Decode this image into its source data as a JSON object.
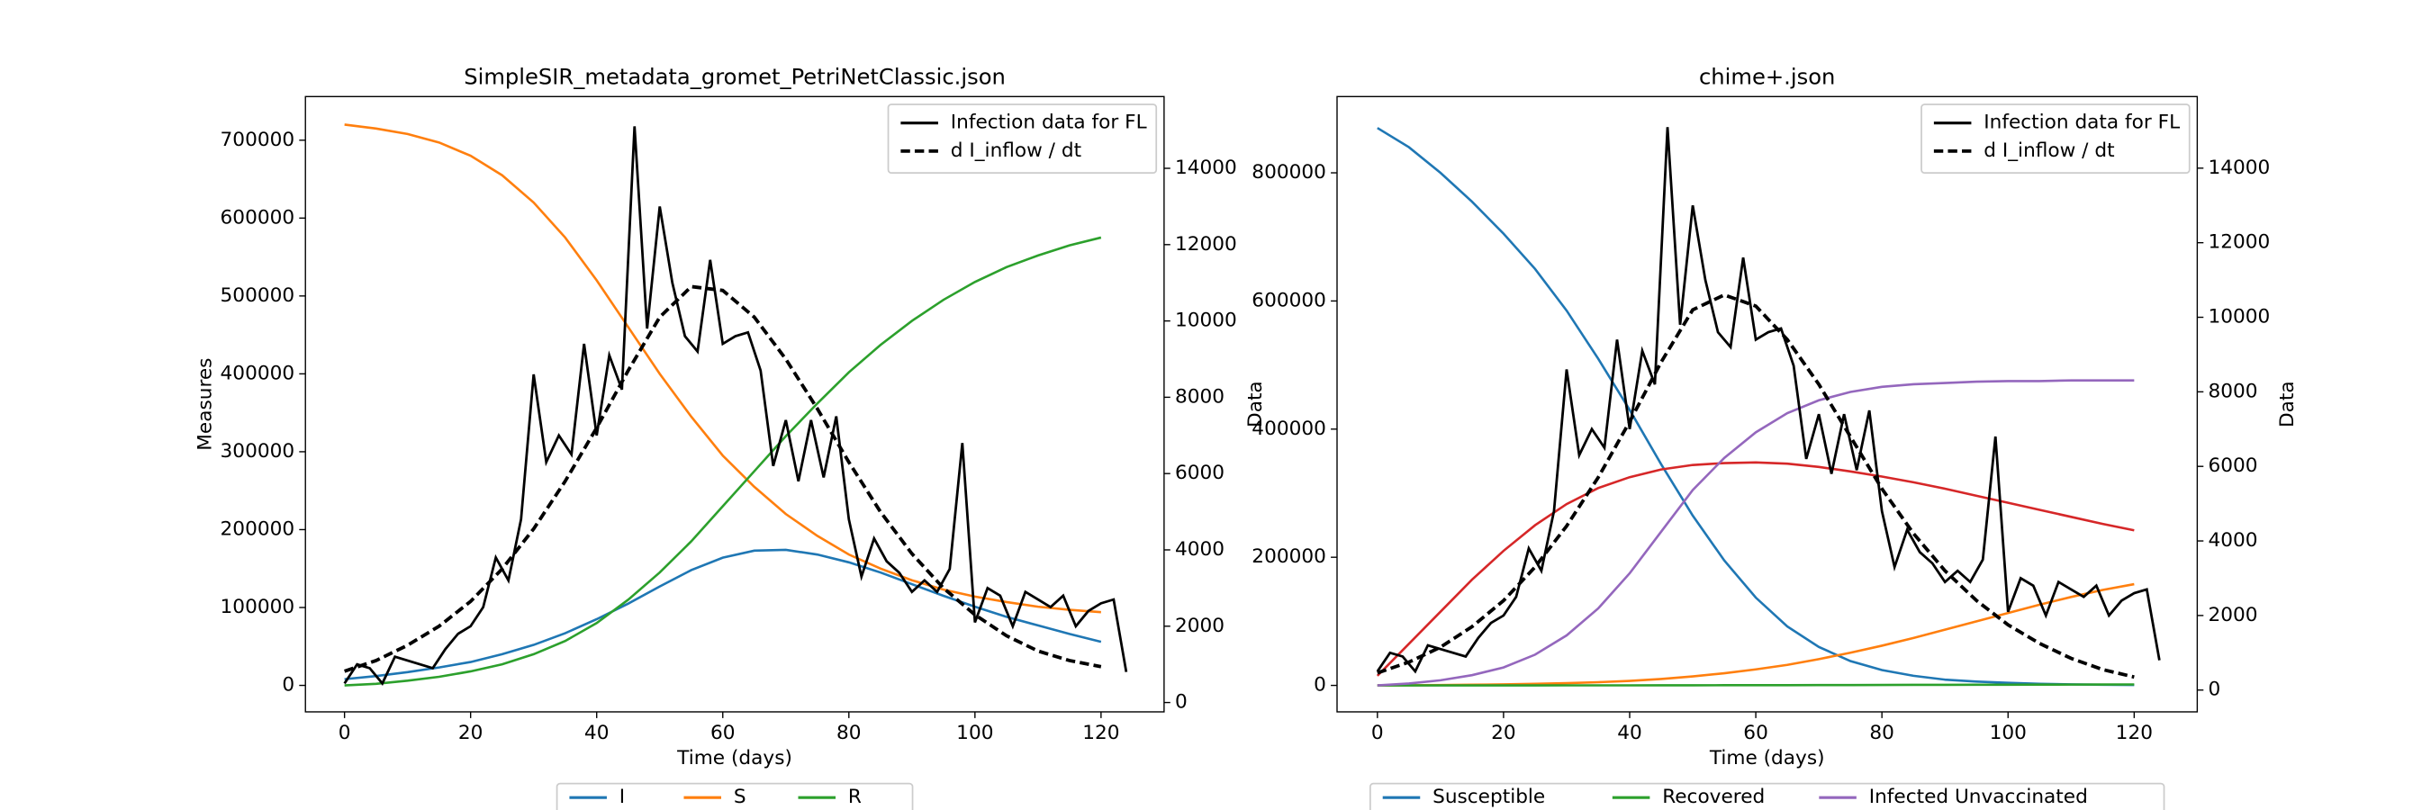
{
  "chart_data": [
    {
      "type": "line",
      "title": "SimpleSIR_metadata_gromet_PetriNetClassic.json",
      "xlabel": "Time (days)",
      "ylabel": "Measures",
      "xlim": [
        -6.2,
        130
      ],
      "ylim": [
        -34000,
        756000
      ],
      "y2lim": [
        -245,
        15880
      ],
      "xticks": [
        0,
        20,
        40,
        60,
        80,
        100,
        120
      ],
      "yticks": [
        0,
        100000,
        200000,
        300000,
        400000,
        500000,
        600000,
        700000
      ],
      "y2ticks": [
        0,
        2000,
        4000,
        6000,
        8000,
        10000,
        12000,
        14000
      ],
      "series": [
        {
          "name": "I",
          "color": "#1f77b4",
          "legend": "below",
          "x": [
            0,
            5,
            10,
            15,
            20,
            25,
            30,
            35,
            40,
            45,
            50,
            55,
            60,
            65,
            70,
            75,
            80,
            85,
            90,
            95,
            100,
            105,
            110,
            115,
            120
          ],
          "values": [
            8000,
            12000,
            17000,
            23000,
            30000,
            40000,
            52000,
            67000,
            85000,
            105000,
            127000,
            148000,
            164000,
            173000,
            174000,
            168000,
            158000,
            145000,
            130000,
            115000,
            101000,
            88000,
            77000,
            66000,
            56000
          ]
        },
        {
          "name": "S",
          "color": "#ff7f0e",
          "legend": "below",
          "x": [
            0,
            5,
            10,
            15,
            20,
            25,
            30,
            35,
            40,
            45,
            50,
            55,
            60,
            65,
            70,
            75,
            80,
            85,
            90,
            95,
            100,
            105,
            110,
            115,
            120
          ],
          "values": [
            720000,
            715000,
            708000,
            697000,
            680000,
            655000,
            620000,
            575000,
            520000,
            460000,
            400000,
            345000,
            295000,
            255000,
            220000,
            192000,
            168000,
            150000,
            135000,
            123000,
            114000,
            107000,
            101000,
            97000,
            94000
          ]
        },
        {
          "name": "R",
          "color": "#2ca02c",
          "legend": "below",
          "x": [
            0,
            5,
            10,
            15,
            20,
            25,
            30,
            35,
            40,
            45,
            50,
            55,
            60,
            65,
            70,
            75,
            80,
            85,
            90,
            95,
            100,
            105,
            110,
            115,
            120
          ],
          "values": [
            0,
            2000,
            6000,
            11000,
            18000,
            27000,
            40000,
            57000,
            80000,
            110000,
            145000,
            185000,
            230000,
            275000,
            320000,
            362000,
            402000,
            437000,
            468000,
            495000,
            518000,
            537000,
            552000,
            565000,
            575000
          ]
        },
        {
          "name": "Infection data for FL",
          "color": "#000000",
          "axis": "y2",
          "legend": "upper right",
          "x": [
            0,
            2,
            4,
            6,
            8,
            10,
            12,
            14,
            16,
            18,
            20,
            22,
            24,
            26,
            28,
            30,
            32,
            34,
            36,
            38,
            40,
            42,
            44,
            46,
            48,
            50,
            52,
            54,
            56,
            58,
            60,
            62,
            64,
            66,
            68,
            70,
            72,
            74,
            76,
            78,
            80,
            82,
            84,
            86,
            88,
            90,
            92,
            94,
            96,
            98,
            100,
            102,
            104,
            106,
            108,
            110,
            112,
            114,
            116,
            118,
            120,
            122,
            124
          ],
          "values": [
            500,
            1000,
            900,
            500,
            1200,
            1100,
            1000,
            900,
            1400,
            1800,
            2000,
            2500,
            3800,
            3200,
            4800,
            8600,
            6300,
            7000,
            6500,
            9400,
            7000,
            9100,
            8200,
            15100,
            9800,
            13000,
            11000,
            9600,
            9200,
            11600,
            9400,
            9600,
            9700,
            8700,
            6200,
            7400,
            5800,
            7400,
            5900,
            7500,
            4800,
            3300,
            4300,
            3700,
            3400,
            2900,
            3200,
            2900,
            3500,
            6800,
            2100,
            3000,
            2800,
            2000,
            2900,
            2700,
            2500,
            2800,
            2000,
            2400,
            2600,
            2700,
            800
          ]
        },
        {
          "name": "d I_inflow / dt",
          "color": "#000000",
          "axis": "y2",
          "linestyle": "dashed",
          "legend": "upper right",
          "x": [
            0,
            5,
            10,
            15,
            20,
            25,
            30,
            35,
            40,
            45,
            50,
            55,
            60,
            65,
            70,
            75,
            80,
            85,
            90,
            95,
            100,
            105,
            110,
            115,
            120
          ],
          "values": [
            820,
            1100,
            1500,
            2000,
            2650,
            3500,
            4550,
            5800,
            7200,
            8700,
            10100,
            10900,
            10800,
            10100,
            9000,
            7700,
            6300,
            5000,
            3900,
            3000,
            2300,
            1750,
            1350,
            1100,
            940
          ]
        }
      ]
    },
    {
      "type": "line",
      "title": "chime+.json",
      "xlabel": "Time (days)",
      "ylabel": "Data",
      "y2label": "Data",
      "xlim": [
        -6.4,
        130
      ],
      "ylim": [
        -41300,
        919000
      ],
      "y2lim": [
        -585,
        15920
      ],
      "xticks": [
        0,
        20,
        40,
        60,
        80,
        100,
        120
      ],
      "yticks": [
        0,
        200000,
        400000,
        600000,
        800000
      ],
      "y2ticks": [
        0,
        2000,
        4000,
        6000,
        8000,
        10000,
        12000,
        14000
      ],
      "series": [
        {
          "name": "Susceptible",
          "color": "#1f77b4",
          "legend": "below",
          "x": [
            0,
            5,
            10,
            15,
            20,
            25,
            30,
            35,
            40,
            45,
            50,
            55,
            60,
            65,
            70,
            75,
            80,
            85,
            90,
            95,
            100,
            105,
            110,
            115,
            120
          ],
          "values": [
            870000,
            840000,
            800000,
            755000,
            705000,
            650000,
            585000,
            510000,
            430000,
            345000,
            265000,
            195000,
            137000,
            92000,
            60000,
            38000,
            24000,
            15000,
            9000,
            6000,
            4000,
            2500,
            1600,
            1000,
            700
          ]
        },
        {
          "color": "#ff7f0e",
          "x": [
            0,
            5,
            10,
            15,
            20,
            25,
            30,
            35,
            40,
            45,
            50,
            55,
            60,
            65,
            70,
            75,
            80,
            85,
            90,
            95,
            100,
            105,
            110,
            115,
            120
          ],
          "values": [
            0,
            200,
            500,
            1000,
            1600,
            2500,
            3500,
            5000,
            7000,
            10000,
            14000,
            19000,
            25000,
            32000,
            41000,
            51000,
            62000,
            74000,
            87000,
            100000,
            113000,
            126000,
            138000,
            149000,
            158000
          ]
        },
        {
          "name": "Recovered",
          "color": "#2ca02c",
          "legend": "below",
          "x": [
            0,
            5,
            10,
            15,
            20,
            25,
            30,
            35,
            40,
            45,
            50,
            55,
            60,
            65,
            70,
            75,
            80,
            85,
            90,
            95,
            100,
            105,
            110,
            115,
            120
          ],
          "values": [
            0,
            0,
            0,
            0,
            0,
            0,
            100,
            100,
            100,
            200,
            200,
            300,
            300,
            400,
            500,
            600,
            700,
            800,
            900,
            1000,
            1100,
            1200,
            1300,
            1400,
            1500
          ]
        },
        {
          "color": "#d62728",
          "x": [
            0,
            5,
            10,
            15,
            20,
            25,
            30,
            35,
            40,
            45,
            50,
            55,
            60,
            65,
            70,
            75,
            80,
            85,
            90,
            95,
            100,
            105,
            110,
            115,
            120
          ],
          "values": [
            15000,
            65000,
            115000,
            165000,
            210000,
            250000,
            283000,
            308000,
            325000,
            337000,
            344000,
            347000,
            348000,
            346000,
            341000,
            334000,
            326000,
            317000,
            307000,
            296000,
            285000,
            274000,
            263000,
            252000,
            242000
          ]
        },
        {
          "name": "Infected Unvaccinated",
          "color": "#9467bd",
          "legend": "below",
          "x": [
            0,
            5,
            10,
            15,
            20,
            25,
            30,
            35,
            40,
            45,
            50,
            55,
            60,
            65,
            70,
            75,
            80,
            85,
            90,
            95,
            100,
            105,
            110,
            115,
            120
          ],
          "values": [
            0,
            3000,
            8000,
            16000,
            28000,
            48000,
            78000,
            120000,
            175000,
            240000,
            305000,
            355000,
            395000,
            425000,
            445000,
            458000,
            466000,
            470000,
            472000,
            474000,
            475000,
            475000,
            476000,
            476000,
            476000
          ]
        },
        {
          "name": "Infection data for FL",
          "color": "#000000",
          "axis": "y2",
          "legend": "upper right",
          "x": [
            0,
            2,
            4,
            6,
            8,
            10,
            12,
            14,
            16,
            18,
            20,
            22,
            24,
            26,
            28,
            30,
            32,
            34,
            36,
            38,
            40,
            42,
            44,
            46,
            48,
            50,
            52,
            54,
            56,
            58,
            60,
            62,
            64,
            66,
            68,
            70,
            72,
            74,
            76,
            78,
            80,
            82,
            84,
            86,
            88,
            90,
            92,
            94,
            96,
            98,
            100,
            102,
            104,
            106,
            108,
            110,
            112,
            114,
            116,
            118,
            120,
            122,
            124
          ],
          "values": [
            500,
            1000,
            900,
            500,
            1200,
            1100,
            1000,
            900,
            1400,
            1800,
            2000,
            2500,
            3800,
            3200,
            4800,
            8600,
            6300,
            7000,
            6500,
            9400,
            7000,
            9100,
            8200,
            15100,
            9800,
            13000,
            11000,
            9600,
            9200,
            11600,
            9400,
            9600,
            9700,
            8700,
            6200,
            7400,
            5800,
            7400,
            5900,
            7500,
            4800,
            3300,
            4300,
            3700,
            3400,
            2900,
            3200,
            2900,
            3500,
            6800,
            2100,
            3000,
            2800,
            2000,
            2900,
            2700,
            2500,
            2800,
            2000,
            2400,
            2600,
            2700,
            800
          ]
        },
        {
          "name": "d I_inflow / dt",
          "color": "#000000",
          "axis": "y2",
          "linestyle": "dashed",
          "legend": "upper right",
          "x": [
            0,
            5,
            10,
            15,
            20,
            25,
            30,
            35,
            40,
            45,
            50,
            55,
            60,
            65,
            70,
            75,
            80,
            85,
            90,
            95,
            100,
            105,
            110,
            115,
            120
          ],
          "values": [
            460,
            750,
            1150,
            1700,
            2400,
            3300,
            4400,
            5700,
            7200,
            8800,
            10200,
            10600,
            10300,
            9400,
            8200,
            6800,
            5400,
            4200,
            3200,
            2400,
            1750,
            1250,
            850,
            550,
            350
          ]
        }
      ]
    }
  ]
}
